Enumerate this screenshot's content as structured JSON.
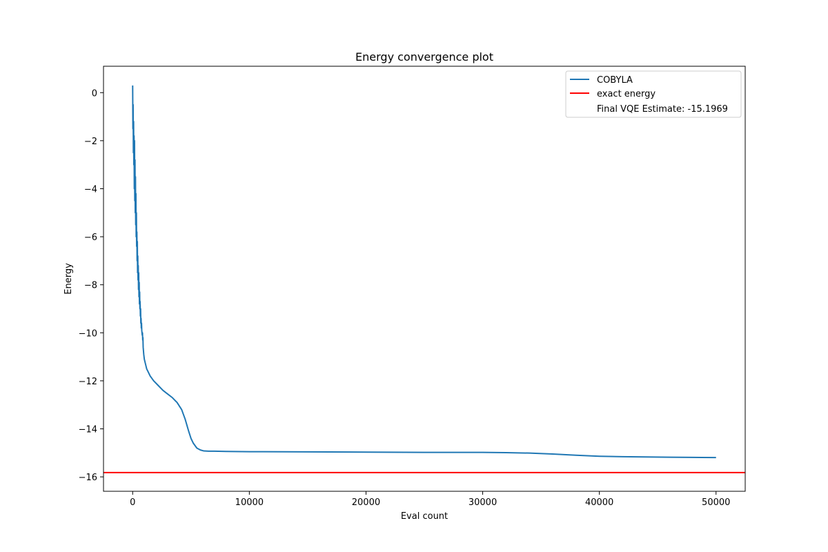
{
  "chart_data": {
    "type": "line",
    "title": "Energy convergence plot",
    "xlabel": "Eval count",
    "ylabel": "Energy",
    "xlim": [
      -2500,
      52500
    ],
    "ylim": [
      -16.6,
      1.1
    ],
    "xticks": [
      0,
      10000,
      20000,
      30000,
      40000,
      50000
    ],
    "yticks": [
      0,
      -2,
      -4,
      -6,
      -8,
      -10,
      -12,
      -14,
      -16
    ],
    "grid": false,
    "legend_position": "top-right",
    "series": [
      {
        "name": "COBYLA",
        "color": "#1f77b4",
        "x": [
          0,
          20,
          40,
          60,
          80,
          100,
          120,
          140,
          160,
          180,
          200,
          220,
          240,
          260,
          280,
          300,
          320,
          340,
          360,
          380,
          400,
          420,
          440,
          460,
          480,
          500,
          520,
          540,
          560,
          580,
          600,
          620,
          640,
          660,
          680,
          700,
          720,
          740,
          760,
          780,
          800,
          820,
          840,
          860,
          880,
          900,
          950,
          1000,
          1100,
          1200,
          1300,
          1500,
          1800,
          2200,
          2600,
          3000,
          3400,
          3800,
          4200,
          4500,
          4800,
          5000,
          5200,
          5500,
          5800,
          6100,
          6500,
          7000,
          8000,
          10000,
          15000,
          20000,
          25000,
          30000,
          32000,
          34000,
          36000,
          38000,
          40000,
          42000,
          44000,
          46000,
          48000,
          50000
        ],
        "values": [
          0.3,
          -1.5,
          -0.5,
          -2.5,
          -1.2,
          -3.0,
          -1.8,
          -4.0,
          -2.0,
          -4.5,
          -2.8,
          -5.0,
          -3.5,
          -5.5,
          -4.2,
          -6.0,
          -5.0,
          -6.4,
          -5.8,
          -7.0,
          -6.2,
          -7.5,
          -6.8,
          -7.8,
          -7.2,
          -8.2,
          -7.5,
          -8.5,
          -7.9,
          -8.8,
          -8.3,
          -9.0,
          -8.7,
          -9.3,
          -9.0,
          -9.6,
          -9.4,
          -9.8,
          -9.6,
          -9.9,
          -10.0,
          -10.1,
          -10.0,
          -10.3,
          -10.2,
          -10.6,
          -10.9,
          -11.1,
          -11.3,
          -11.5,
          -11.6,
          -11.8,
          -12.0,
          -12.2,
          -12.4,
          -12.55,
          -12.7,
          -12.9,
          -13.2,
          -13.6,
          -14.1,
          -14.4,
          -14.6,
          -14.8,
          -14.88,
          -14.92,
          -14.93,
          -14.93,
          -14.94,
          -14.95,
          -14.96,
          -14.97,
          -14.98,
          -14.98,
          -14.99,
          -15.01,
          -15.05,
          -15.1,
          -15.14,
          -15.16,
          -15.17,
          -15.18,
          -15.19,
          -15.1969
        ]
      },
      {
        "name": "exact energy",
        "color": "#ff0000",
        "type": "hline",
        "y": -15.82
      }
    ],
    "legend_extra": "Final VQE Estimate: -15.1969"
  }
}
